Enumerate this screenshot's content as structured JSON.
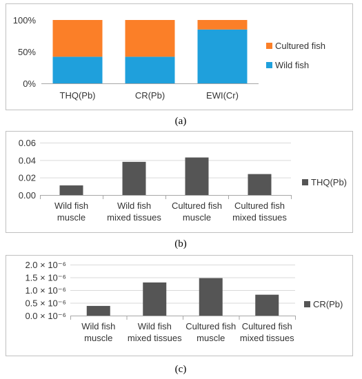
{
  "chart_data": [
    {
      "type": "bar",
      "stacked": true,
      "normalized": true,
      "caption": "(a)",
      "categories": [
        "THQ(Pb)",
        "CR(Pb)",
        "EWI(Cr)"
      ],
      "series": [
        {
          "name": "Wild fish",
          "values": [
            42,
            42,
            85
          ]
        },
        {
          "name": "Cultured fish",
          "values": [
            58,
            58,
            15
          ]
        }
      ],
      "y_ticks": [
        "0%",
        "50%",
        "100%"
      ],
      "ylim": [
        0,
        100
      ],
      "legend": "right",
      "grid": false
    },
    {
      "type": "bar",
      "caption": "(b)",
      "categories": [
        "Wild fish muscle",
        "Wild fish mixed tissues",
        "Cultured fish muscle",
        "Cultured fish mixed tissues"
      ],
      "category_lines": [
        [
          "Wild fish",
          "muscle"
        ],
        [
          "Wild fish",
          "mixed tissues"
        ],
        [
          "Cultured fish",
          "muscle"
        ],
        [
          "Cultured fish",
          "mixed tissues"
        ]
      ],
      "series": [
        {
          "name": "THQ(Pb)",
          "values": [
            0.011,
            0.038,
            0.043,
            0.024
          ]
        }
      ],
      "y_ticks": [
        "0.00",
        "0.02",
        "0.04",
        "0.06"
      ],
      "ylim": [
        0,
        0.06
      ],
      "legend": "right",
      "grid": true
    },
    {
      "type": "bar",
      "caption": "(c)",
      "categories": [
        "Wild fish muscle",
        "Wild fish mixed tissues",
        "Cultured fish muscle",
        "Cultured fish mixed tissues"
      ],
      "category_lines": [
        [
          "Wild fish",
          "muscle"
        ],
        [
          "Wild fish",
          "mixed tissues"
        ],
        [
          "Cultured fish",
          "muscle"
        ],
        [
          "Cultured fish",
          "mixed tissues"
        ]
      ],
      "series": [
        {
          "name": "CR(Pb)",
          "values": [
            3.8e-07,
            1.3e-06,
            1.47e-06,
            8.2e-07
          ]
        }
      ],
      "y_ticks": [
        "0.0 × 10⁻⁶",
        "0.5 × 10⁻⁶",
        "1.0 × 10⁻⁶",
        "1.5 × 10⁻⁶",
        "2.0 × 10⁻⁶"
      ],
      "ylim": [
        0,
        2e-06
      ],
      "legend": "right",
      "grid": true
    }
  ],
  "colors": {
    "wild": "#1fa0dc",
    "cultured": "#fb7f28",
    "bar": "#555555",
    "grid": "#d9d9d9",
    "frame": "#c0c0c0",
    "axis": "#a6a6a6"
  }
}
